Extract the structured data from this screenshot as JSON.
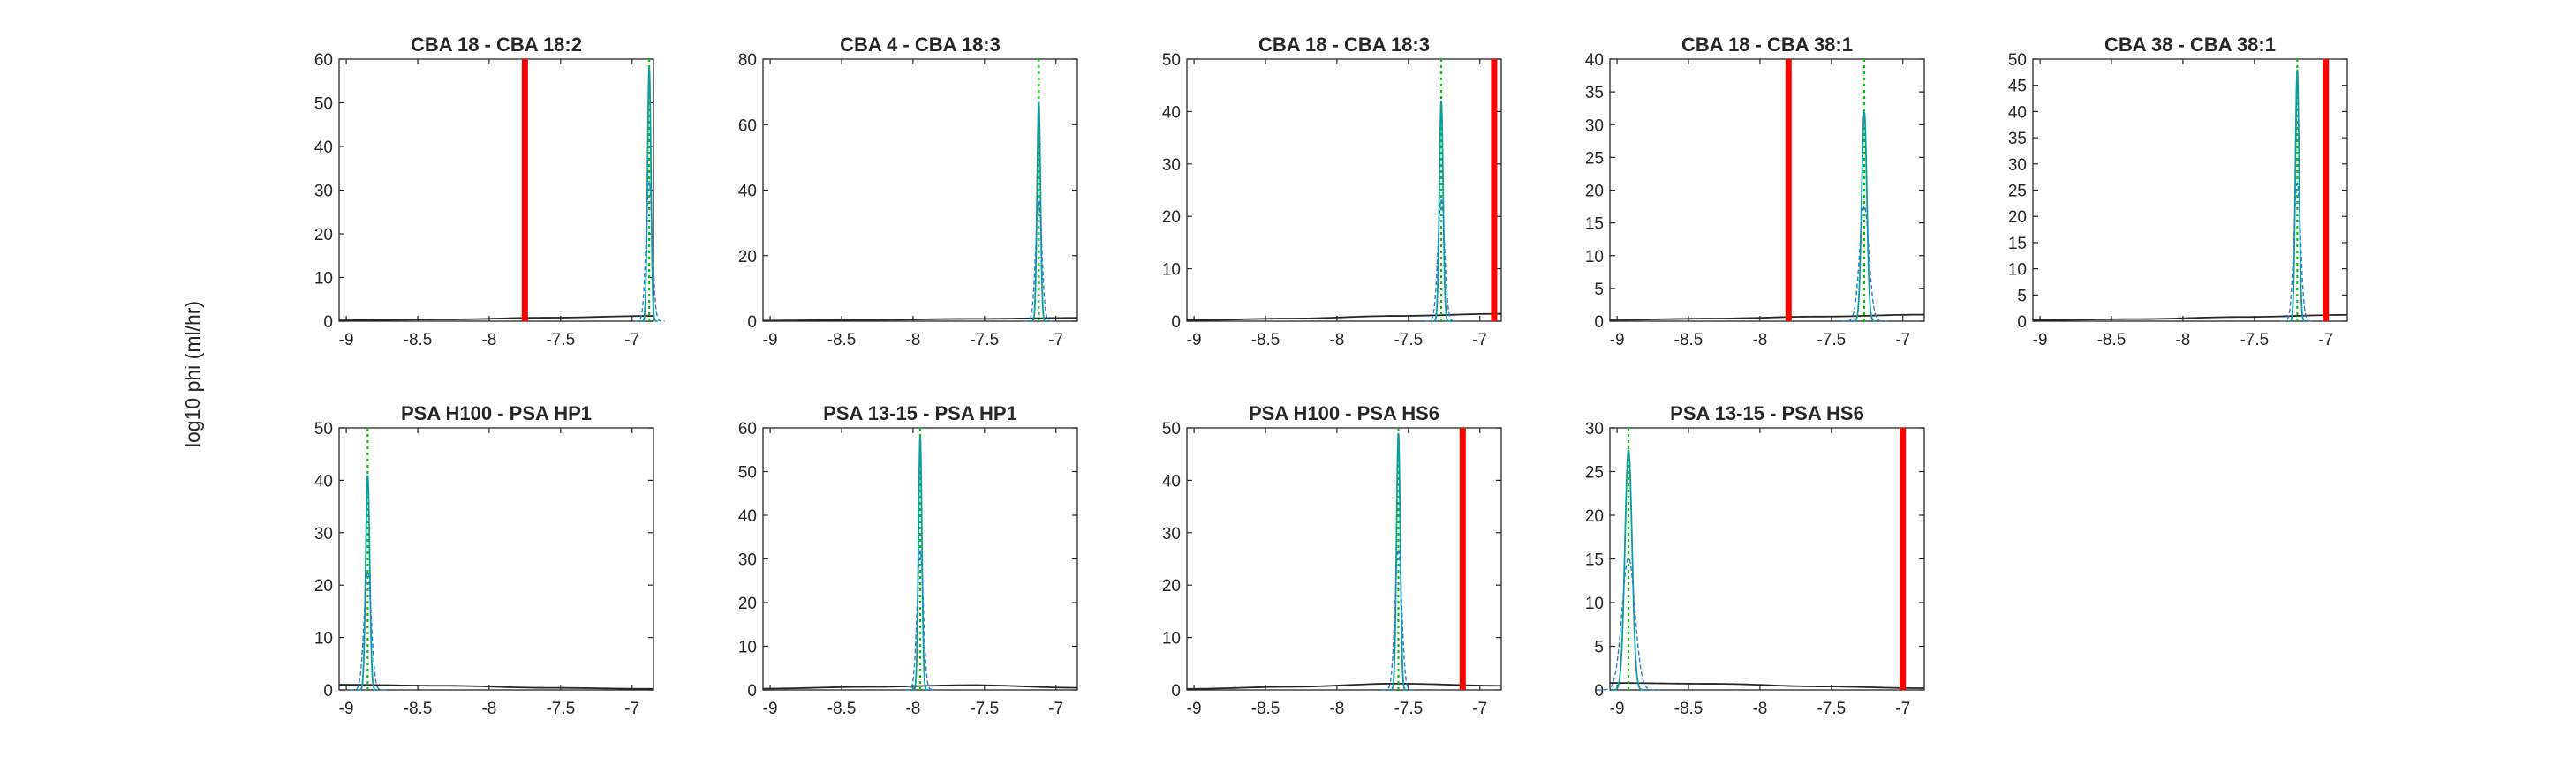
{
  "figure": {
    "ylabel": "log10 phi (ml/hr)"
  },
  "colors": {
    "threshold": "#ff0000",
    "peak_line": "#00c800",
    "density_blue": "#2f7bd6",
    "density_teal": "#0f9c9c",
    "baseline": "#262626",
    "axes": "#262626"
  },
  "chart_data": [
    {
      "type": "line",
      "title": "CBA 18 - CBA 18:2",
      "xlim": [
        -9.05,
        -6.85
      ],
      "ylim": [
        0,
        60
      ],
      "xticks": [
        "-9",
        "-8.5",
        "-8",
        "-7.5",
        "-7"
      ],
      "yticks": [
        "0",
        "10",
        "20",
        "30",
        "40",
        "50",
        "60"
      ],
      "threshold_x": -7.75,
      "peak_x": -6.88,
      "peak_height": 58,
      "peak_width": 0.012,
      "baseline_y": [
        0.2,
        0.4,
        0.8,
        1.2
      ]
    },
    {
      "type": "line",
      "title": "CBA 4 - CBA 18:3",
      "xlim": [
        -9.05,
        -6.85
      ],
      "ylim": [
        0,
        80
      ],
      "xticks": [
        "-9",
        "-8.5",
        "-8",
        "-7.5",
        "-7"
      ],
      "yticks": [
        "0",
        "20",
        "40",
        "60",
        "80"
      ],
      "threshold_x": null,
      "peak_x": -7.12,
      "peak_height": 67,
      "peak_width": 0.012,
      "baseline_y": [
        0.2,
        0.4,
        0.7,
        1.0
      ]
    },
    {
      "type": "line",
      "title": "CBA 18 - CBA 18:3",
      "xlim": [
        -9.05,
        -6.85
      ],
      "ylim": [
        0,
        50
      ],
      "xticks": [
        "-9",
        "-8.5",
        "-8",
        "-7.5",
        "-7"
      ],
      "yticks": [
        "0",
        "10",
        "20",
        "30",
        "40",
        "50"
      ],
      "threshold_x": -6.9,
      "peak_x": -7.27,
      "peak_height": 42,
      "peak_width": 0.013,
      "baseline_y": [
        0.2,
        0.5,
        1.0,
        1.4
      ]
    },
    {
      "type": "line",
      "title": "CBA 18 - CBA 38:1",
      "xlim": [
        -9.05,
        -6.85
      ],
      "ylim": [
        0,
        40
      ],
      "xticks": [
        "-9",
        "-8.5",
        "-8",
        "-7.5",
        "-7"
      ],
      "yticks": [
        "0",
        "5",
        "10",
        "15",
        "20",
        "25",
        "30",
        "35",
        "40"
      ],
      "threshold_x": -7.8,
      "peak_x": -7.27,
      "peak_height": 32,
      "peak_width": 0.018,
      "baseline_y": [
        0.2,
        0.4,
        0.7,
        1.0
      ]
    },
    {
      "type": "line",
      "title": "CBA 38 - CBA 38:1",
      "xlim": [
        -9.05,
        -6.85
      ],
      "ylim": [
        0,
        50
      ],
      "xticks": [
        "-9",
        "-8.5",
        "-8",
        "-7.5",
        "-7"
      ],
      "yticks": [
        "0",
        "5",
        "10",
        "15",
        "20",
        "25",
        "30",
        "35",
        "40",
        "45",
        "50"
      ],
      "threshold_x": -7.0,
      "peak_x": -7.2,
      "peak_height": 48,
      "peak_width": 0.013,
      "baseline_y": [
        0.2,
        0.4,
        0.8,
        1.2
      ]
    },
    {
      "type": "line",
      "title": "PSA H100 - PSA HP1",
      "xlim": [
        -9.05,
        -6.85
      ],
      "ylim": [
        0,
        50
      ],
      "xticks": [
        "-9",
        "-8.5",
        "-8",
        "-7.5",
        "-7"
      ],
      "yticks": [
        "0",
        "10",
        "20",
        "30",
        "40",
        "50"
      ],
      "threshold_x": null,
      "peak_x": -8.85,
      "peak_height": 41,
      "peak_width": 0.014,
      "baseline_y": [
        1.0,
        0.8,
        0.4,
        0.2
      ]
    },
    {
      "type": "line",
      "title": "PSA 13-15 - PSA HP1",
      "xlim": [
        -9.05,
        -6.85
      ],
      "ylim": [
        0,
        60
      ],
      "xticks": [
        "-9",
        "-8.5",
        "-8",
        "-7.5",
        "-7"
      ],
      "yticks": [
        "0",
        "10",
        "20",
        "30",
        "40",
        "50",
        "60"
      ],
      "threshold_x": null,
      "peak_x": -7.95,
      "peak_height": 58,
      "peak_width": 0.012,
      "baseline_y": [
        0.3,
        0.7,
        1.1,
        0.5
      ]
    },
    {
      "type": "line",
      "title": "PSA H100 - PSA HS6",
      "xlim": [
        -9.05,
        -6.85
      ],
      "ylim": [
        0,
        50
      ],
      "xticks": [
        "-9",
        "-8.5",
        "-8",
        "-7.5",
        "-7"
      ],
      "yticks": [
        "0",
        "10",
        "20",
        "30",
        "40",
        "50"
      ],
      "threshold_x": -7.12,
      "peak_x": -7.57,
      "peak_height": 49,
      "peak_width": 0.013,
      "baseline_y": [
        0.2,
        0.6,
        1.2,
        0.8
      ]
    },
    {
      "type": "line",
      "title": "PSA 13-15 - PSA HS6",
      "xlim": [
        -9.05,
        -6.85
      ],
      "ylim": [
        0,
        30
      ],
      "xticks": [
        "-9",
        "-8.5",
        "-8",
        "-7.5",
        "-7"
      ],
      "yticks": [
        "0",
        "5",
        "10",
        "15",
        "20",
        "25",
        "30"
      ],
      "threshold_x": -7.0,
      "peak_x": -8.92,
      "peak_height": 27.5,
      "peak_width": 0.025,
      "baseline_y": [
        0.8,
        0.7,
        0.4,
        0.2
      ]
    }
  ]
}
